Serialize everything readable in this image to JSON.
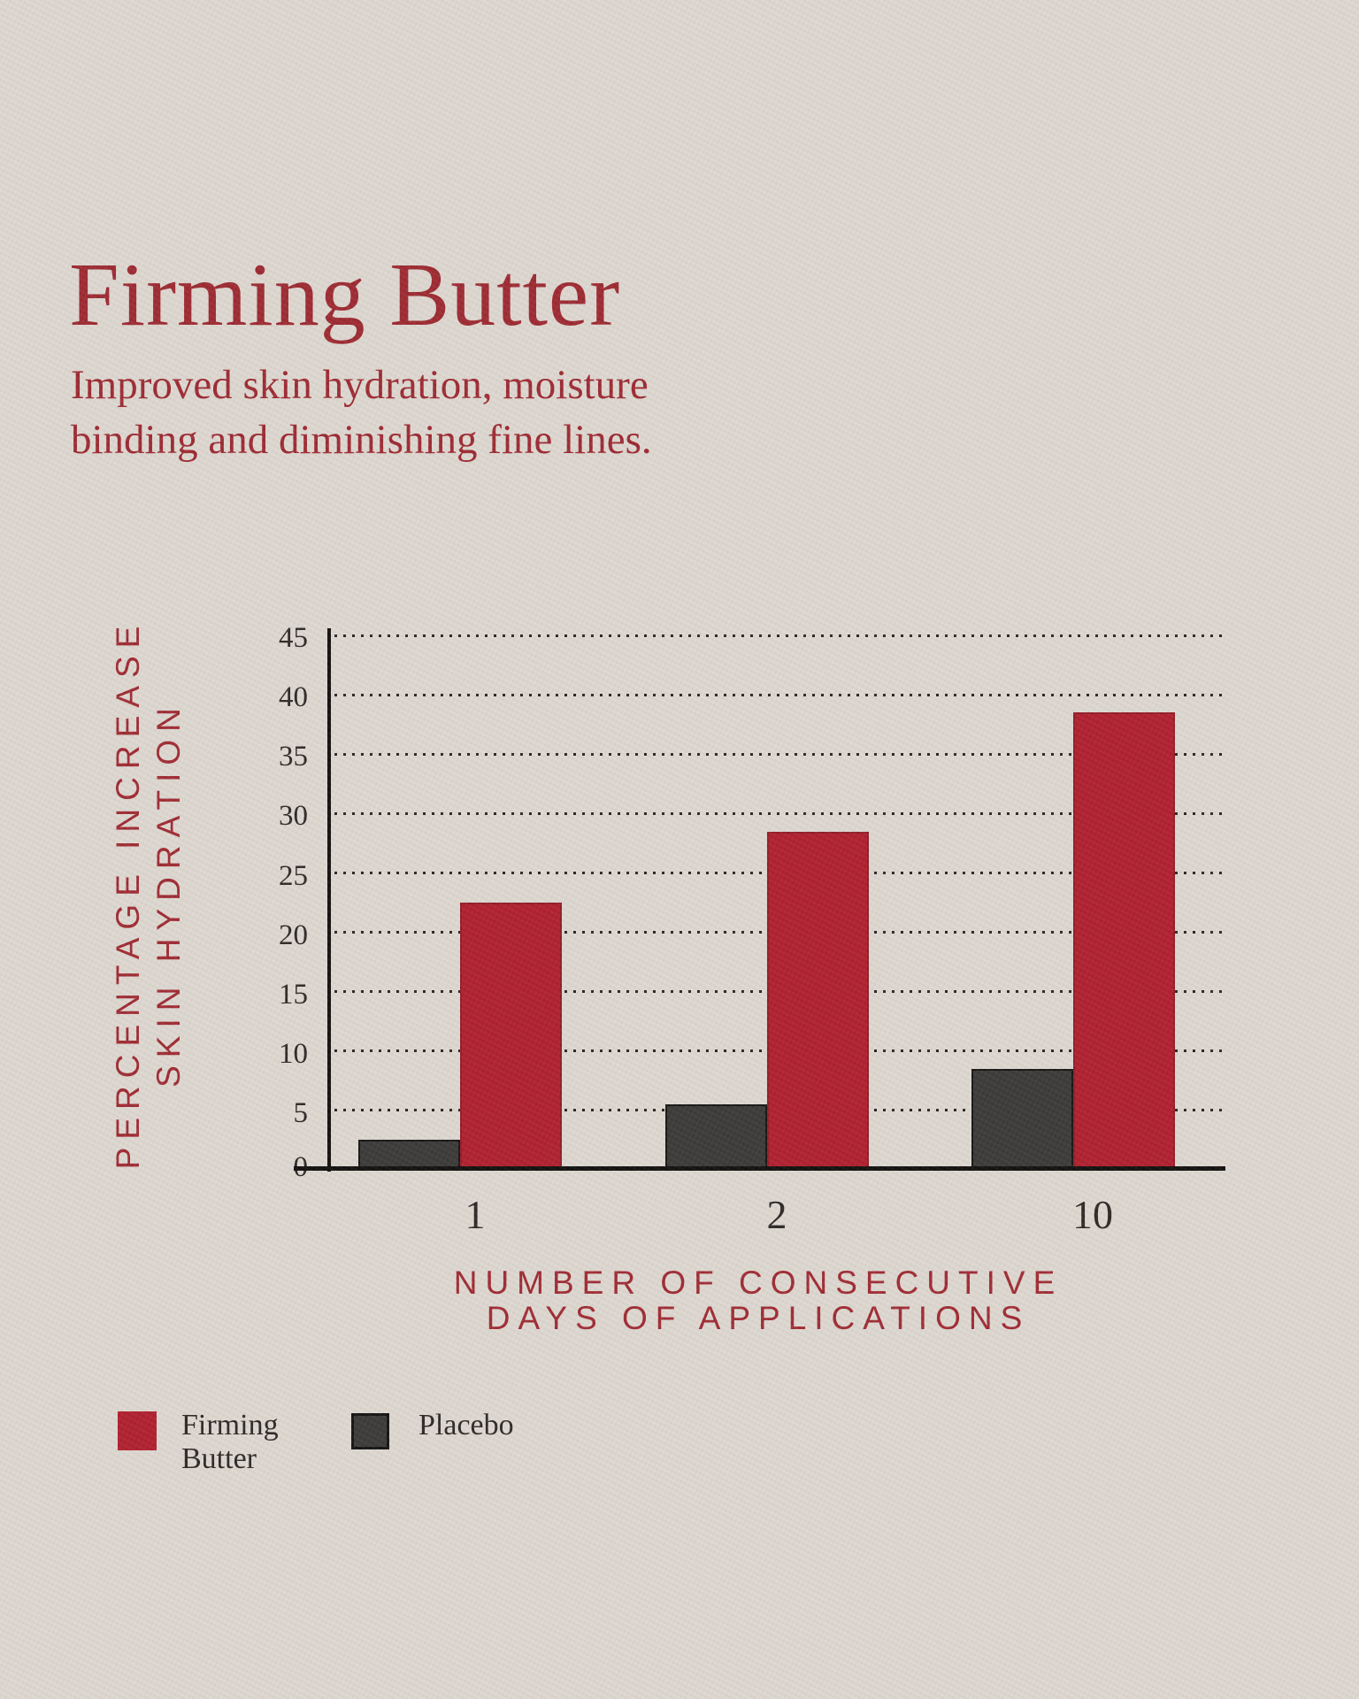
{
  "page": {
    "background_color": "#DDD7D0",
    "text_red": "#9E2B33",
    "axis_title_red": "#A02C34",
    "dark_text": "#2E2A27"
  },
  "header": {
    "title": "Firming Butter",
    "subtitle_lines": [
      "Improved skin hydration, moisture",
      "binding and diminishing fine lines."
    ]
  },
  "chart_data": {
    "type": "bar",
    "title": "",
    "categories": [
      "1",
      "2",
      "10"
    ],
    "series": [
      {
        "name": "Placebo",
        "color": "#3C3B39",
        "values": [
          2.5,
          5.5,
          8.5
        ]
      },
      {
        "name": "Firming Butter",
        "color": "#B02130",
        "values": [
          22.5,
          28.5,
          38.5
        ]
      }
    ],
    "xlabel_lines": [
      "NUMBER OF CONSECUTIVE",
      "DAYS OF APPLICATIONS"
    ],
    "ylabel_lines": [
      "PERCENTAGE INCREASE",
      "SKIN HYDRATION"
    ],
    "ylim": [
      0,
      45
    ],
    "ytick_step": 5,
    "ytick_labels": [
      "45",
      "40",
      "35",
      "30",
      "25",
      "20",
      "15",
      "10",
      "5",
      "0"
    ],
    "grid": "horizontal dotted lines at every 5 units, no gridline at 0",
    "legend_position": "bottom-left",
    "bar_order_in_group": [
      "Placebo (left, gray)",
      "Firming Butter (right, red)"
    ]
  },
  "legend": {
    "items": [
      {
        "name": "Firming Butter",
        "lines": [
          "Firming",
          "Butter"
        ],
        "color": "#B02130"
      },
      {
        "name": "Placebo",
        "lines": [
          "Placebo"
        ],
        "color": "#3C3B39"
      }
    ]
  }
}
